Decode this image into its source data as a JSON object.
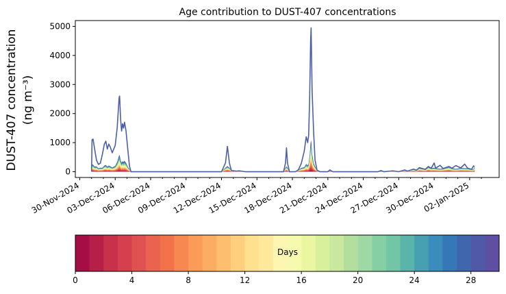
{
  "chart_data": {
    "type": "area",
    "title": "Age contribution to DUST-407 concentrations",
    "ylabel_line1": "DUST-407 concentration",
    "ylabel_line2": "(ng m⁻³)",
    "xlabel": "",
    "ylim": [
      -200,
      5200
    ],
    "y_ticks": [
      0,
      1000,
      2000,
      3000,
      4000,
      5000
    ],
    "x_range": [
      "2024-11-29T15:00",
      "2025-01-04T12:00"
    ],
    "x_ticks": [
      "30-Nov-2024",
      "03-Dec-2024",
      "06-Dec-2024",
      "09-Dec-2024",
      "12-Dec-2024",
      "15-Dec-2024",
      "18-Dec-2024",
      "21-Dec-2024",
      "24-Dec-2024",
      "27-Dec-2024",
      "30-Dec-2024",
      "02-Jan-2025"
    ],
    "x_tick_dates": [
      "2024-11-30",
      "2024-12-03",
      "2024-12-06",
      "2024-12-09",
      "2024-12-12",
      "2024-12-15",
      "2024-12-18",
      "2024-12-21",
      "2024-12-24",
      "2024-12-27",
      "2024-12-30",
      "2025-01-02"
    ],
    "minor_tick_dates": [
      "2024-12-01",
      "2024-12-02",
      "2024-12-04",
      "2024-12-05",
      "2024-12-07",
      "2024-12-08",
      "2024-12-10",
      "2024-12-11",
      "2024-12-13",
      "2024-12-14",
      "2024-12-16",
      "2024-12-17",
      "2024-12-19",
      "2024-12-20",
      "2024-12-22",
      "2024-12-23",
      "2024-12-25",
      "2024-12-26",
      "2024-12-28",
      "2024-12-29",
      "2024-12-31",
      "2025-01-01",
      "2025-01-03"
    ],
    "total_series": {
      "color": "#4a5fa8",
      "points": [
        [
          "2024-12-01T00:00",
          0
        ],
        [
          "2024-12-01T01:00",
          1100
        ],
        [
          "2024-12-01T03:00",
          1120
        ],
        [
          "2024-12-01T06:00",
          800
        ],
        [
          "2024-12-01T10:00",
          400
        ],
        [
          "2024-12-01T14:00",
          250
        ],
        [
          "2024-12-01T18:00",
          300
        ],
        [
          "2024-12-01T22:00",
          600
        ],
        [
          "2024-12-02T02:00",
          950
        ],
        [
          "2024-12-02T05:00",
          1050
        ],
        [
          "2024-12-02T08:00",
          780
        ],
        [
          "2024-12-02T11:00",
          950
        ],
        [
          "2024-12-02T14:00",
          850
        ],
        [
          "2024-12-02T18:00",
          650
        ],
        [
          "2024-12-03T00:00",
          900
        ],
        [
          "2024-12-03T04:00",
          1500
        ],
        [
          "2024-12-03T08:00",
          2550
        ],
        [
          "2024-12-03T09:00",
          2600
        ],
        [
          "2024-12-03T11:00",
          1800
        ],
        [
          "2024-12-03T13:00",
          1400
        ],
        [
          "2024-12-03T15:00",
          1650
        ],
        [
          "2024-12-03T17:00",
          1500
        ],
        [
          "2024-12-03T19:00",
          1700
        ],
        [
          "2024-12-03T22:00",
          1400
        ],
        [
          "2024-12-04T02:00",
          700
        ],
        [
          "2024-12-04T05:00",
          200
        ],
        [
          "2024-12-04T08:00",
          0
        ],
        [
          "2024-12-12T00:00",
          0
        ],
        [
          "2024-12-12T08:00",
          300
        ],
        [
          "2024-12-12T12:00",
          870
        ],
        [
          "2024-12-12T16:00",
          300
        ],
        [
          "2024-12-12T20:00",
          40
        ],
        [
          "2024-12-13T06:00",
          20
        ],
        [
          "2024-12-13T12:00",
          30
        ],
        [
          "2024-12-14T00:00",
          0
        ],
        [
          "2024-12-17T06:00",
          0
        ],
        [
          "2024-12-17T10:00",
          300
        ],
        [
          "2024-12-17T12:00",
          820
        ],
        [
          "2024-12-17T14:00",
          300
        ],
        [
          "2024-12-17T18:00",
          0
        ],
        [
          "2024-12-18T06:00",
          0
        ],
        [
          "2024-12-18T12:00",
          60
        ],
        [
          "2024-12-18T18:00",
          280
        ],
        [
          "2024-12-19T00:00",
          700
        ],
        [
          "2024-12-19T04:00",
          1200
        ],
        [
          "2024-12-19T07:00",
          1000
        ],
        [
          "2024-12-19T09:00",
          1250
        ],
        [
          "2024-12-19T11:00",
          2500
        ],
        [
          "2024-12-19T13:00",
          4500
        ],
        [
          "2024-12-19T14:00",
          4950
        ],
        [
          "2024-12-19T16:00",
          2800
        ],
        [
          "2024-12-19T19:00",
          1400
        ],
        [
          "2024-12-19T22:00",
          400
        ],
        [
          "2024-12-20T02:00",
          50
        ],
        [
          "2024-12-20T08:00",
          0
        ],
        [
          "2024-12-21T00:00",
          0
        ],
        [
          "2024-12-21T04:00",
          60
        ],
        [
          "2024-12-21T10:00",
          0
        ],
        [
          "2024-12-25T06:00",
          0
        ],
        [
          "2024-12-25T12:00",
          40
        ],
        [
          "2024-12-25T18:00",
          0
        ],
        [
          "2024-12-26T12:00",
          30
        ],
        [
          "2024-12-27T00:00",
          0
        ],
        [
          "2024-12-27T12:00",
          60
        ],
        [
          "2024-12-27T18:00",
          20
        ],
        [
          "2024-12-28T06:00",
          90
        ],
        [
          "2024-12-28T12:00",
          50
        ],
        [
          "2024-12-28T18:00",
          140
        ],
        [
          "2024-12-29T06:00",
          80
        ],
        [
          "2024-12-29T12:00",
          180
        ],
        [
          "2024-12-29T18:00",
          120
        ],
        [
          "2024-12-30T00:00",
          300
        ],
        [
          "2024-12-30T03:00",
          120
        ],
        [
          "2024-12-30T12:00",
          220
        ],
        [
          "2024-12-30T18:00",
          110
        ],
        [
          "2024-12-31T06:00",
          180
        ],
        [
          "2024-12-31T12:00",
          120
        ],
        [
          "2024-12-31T20:00",
          210
        ],
        [
          "2025-01-01T06:00",
          130
        ],
        [
          "2025-01-01T14:00",
          260
        ],
        [
          "2025-01-01T20:00",
          120
        ],
        [
          "2025-01-02T04:00",
          80
        ],
        [
          "2025-01-02T08:00",
          200
        ],
        [
          "2025-01-02T10:00",
          170
        ]
      ]
    },
    "colorbar": {
      "label": "Days",
      "range": [
        0,
        30
      ],
      "ticks": [
        0,
        4,
        8,
        12,
        16,
        20,
        24,
        28
      ],
      "colors": [
        "#a50d45",
        "#b51f48",
        "#c8314a",
        "#d6404e",
        "#e05252",
        "#e9634e",
        "#f2724a",
        "#f78850",
        "#fa9b58",
        "#fcac63",
        "#fdbf6f",
        "#fed07e",
        "#fee18e",
        "#fee99b",
        "#fdf6b2",
        "#f5faaf",
        "#ebf7a0",
        "#d8ef9b",
        "#c9e89e",
        "#b2df9e",
        "#9ed8a4",
        "#86cfa5",
        "#72c5a5",
        "#5bb4aa",
        "#47a0b2",
        "#3a8cba",
        "#3478b7",
        "#3f67ae",
        "#4f59a7",
        "#5e4fa2"
      ]
    }
  }
}
